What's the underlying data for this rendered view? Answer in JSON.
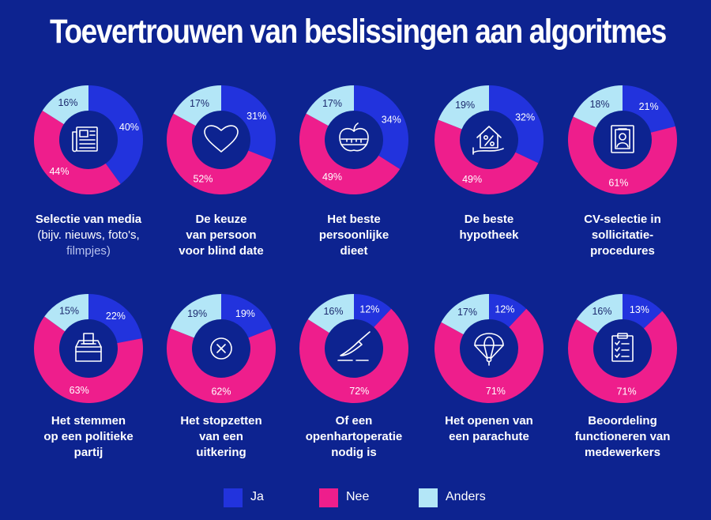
{
  "title": "Toevertrouwen van beslissingen aan algoritmes",
  "colors": {
    "background": "#0d2390",
    "ja": "#2233dd",
    "nee": "#ee1e8c",
    "anders": "#b3e6f7"
  },
  "legend": [
    {
      "key": "ja",
      "label": "Ja"
    },
    {
      "key": "nee",
      "label": "Nee"
    },
    {
      "key": "anders",
      "label": "Anders"
    }
  ],
  "chart_data": {
    "type": "donut",
    "series_names": [
      "Ja",
      "Nee",
      "Anders"
    ],
    "charts": [
      {
        "icon": "newspaper-icon",
        "values": {
          "ja": 40,
          "nee": 44,
          "anders": 16
        },
        "labels": {
          "ja": "40%",
          "nee": "44%",
          "anders": "16%"
        },
        "caption": [
          {
            "text": "Selectie van media",
            "style": "bold"
          },
          {
            "text": "(bijv. nieuws, foto's,",
            "style": "light"
          },
          {
            "text": "filmpjes)",
            "style": "faded"
          }
        ]
      },
      {
        "icon": "heart-icon",
        "values": {
          "ja": 31,
          "nee": 52,
          "anders": 17
        },
        "labels": {
          "ja": "31%",
          "nee": "52%",
          "anders": "17%"
        },
        "caption": [
          {
            "text": "De keuze",
            "style": "bold"
          },
          {
            "text": "van persoon",
            "style": "bold"
          },
          {
            "text": "voor blind date",
            "style": "bold"
          }
        ]
      },
      {
        "icon": "apple-scale-icon",
        "values": {
          "ja": 34,
          "nee": 49,
          "anders": 17
        },
        "labels": {
          "ja": "34%",
          "nee": "49%",
          "anders": "17%"
        },
        "caption": [
          {
            "text": "Het beste",
            "style": "bold"
          },
          {
            "text": "persoonlijke",
            "style": "bold"
          },
          {
            "text": "dieet",
            "style": "bold"
          }
        ]
      },
      {
        "icon": "house-percent-icon",
        "values": {
          "ja": 32,
          "nee": 49,
          "anders": 19
        },
        "labels": {
          "ja": "32%",
          "nee": "49%",
          "anders": "19%"
        },
        "caption": [
          {
            "text": "De beste",
            "style": "bold"
          },
          {
            "text": "hypotheek",
            "style": "bold"
          }
        ]
      },
      {
        "icon": "cv-document-icon",
        "values": {
          "ja": 21,
          "nee": 61,
          "anders": 18
        },
        "labels": {
          "ja": "21%",
          "nee": "61%",
          "anders": "18%"
        },
        "caption": [
          {
            "text": "CV-selectie in",
            "style": "bold"
          },
          {
            "text": "sollicitatie-",
            "style": "bold"
          },
          {
            "text": "procedures",
            "style": "bold"
          }
        ]
      },
      {
        "icon": "ballot-box-icon",
        "values": {
          "ja": 22,
          "nee": 63,
          "anders": 15
        },
        "labels": {
          "ja": "22%",
          "nee": "63%",
          "anders": "15%"
        },
        "caption": [
          {
            "text": "Het stemmen",
            "style": "bold"
          },
          {
            "text": "op een politieke",
            "style": "bold"
          },
          {
            "text": "partij",
            "style": "bold"
          }
        ]
      },
      {
        "icon": "cross-circle-icon",
        "values": {
          "ja": 19,
          "nee": 62,
          "anders": 19
        },
        "labels": {
          "ja": "19%",
          "nee": "62%",
          "anders": "19%"
        },
        "caption": [
          {
            "text": "Het stopzetten",
            "style": "bold"
          },
          {
            "text": "van een",
            "style": "bold"
          },
          {
            "text": "uitkering",
            "style": "bold"
          }
        ]
      },
      {
        "icon": "scalpel-icon",
        "values": {
          "ja": 12,
          "nee": 72,
          "anders": 16
        },
        "labels": {
          "ja": "12%",
          "nee": "72%",
          "anders": "16%"
        },
        "caption": [
          {
            "text": "Of een",
            "style": "bold"
          },
          {
            "text": "openhartoperatie",
            "style": "bold"
          },
          {
            "text": "nodig is",
            "style": "bold"
          }
        ]
      },
      {
        "icon": "parachute-icon",
        "values": {
          "ja": 12,
          "nee": 71,
          "anders": 17
        },
        "labels": {
          "ja": "12%",
          "nee": "71%",
          "anders": "17%"
        },
        "caption": [
          {
            "text": "Het openen van",
            "style": "bold"
          },
          {
            "text": "een parachute",
            "style": "bold"
          }
        ]
      },
      {
        "icon": "clipboard-check-icon",
        "values": {
          "ja": 13,
          "nee": 71,
          "anders": 16
        },
        "labels": {
          "ja": "13%",
          "nee": "71%",
          "anders": "16%"
        },
        "caption": [
          {
            "text": "Beoordeling",
            "style": "bold"
          },
          {
            "text": "functioneren van",
            "style": "bold"
          },
          {
            "text": "medewerkers",
            "style": "bold"
          }
        ]
      }
    ]
  }
}
